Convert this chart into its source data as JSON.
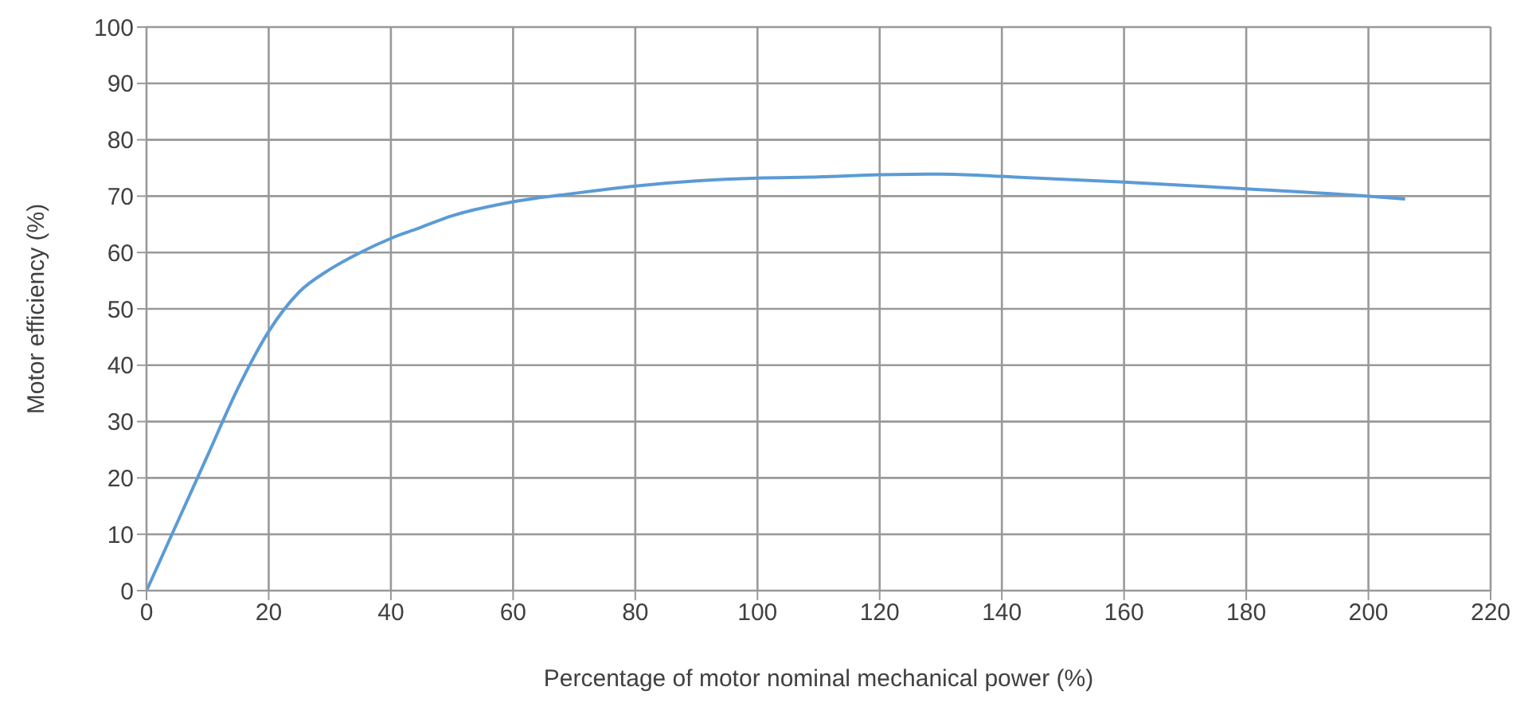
{
  "chart_data": {
    "type": "line",
    "xlabel": "Percentage of motor nominal mechanical power (%)",
    "ylabel": "Motor efficiency (%)",
    "x": [
      0,
      5,
      10,
      15,
      20,
      25,
      30,
      35,
      40,
      45,
      50,
      60,
      70,
      80,
      90,
      100,
      110,
      120,
      130,
      140,
      160,
      180,
      200,
      206
    ],
    "series": [
      {
        "color": "#5b9bd5",
        "values": [
          0,
          12,
          24,
          36,
          46,
          53,
          57,
          60,
          62.5,
          64.5,
          66.5,
          69,
          70.5,
          71.8,
          72.7,
          73.2,
          73.4,
          73.8,
          73.9,
          73.5,
          72.5,
          71.3,
          70,
          69.5
        ]
      }
    ],
    "xlim": [
      0,
      220
    ],
    "xticks": [
      0,
      20,
      40,
      60,
      80,
      100,
      120,
      140,
      160,
      180,
      200,
      220
    ],
    "ylim": [
      0,
      100
    ],
    "yticks": [
      0,
      10,
      20,
      30,
      40,
      50,
      60,
      70,
      80,
      90,
      100
    ],
    "grid": true,
    "marker": "none",
    "line_style": "solid"
  }
}
